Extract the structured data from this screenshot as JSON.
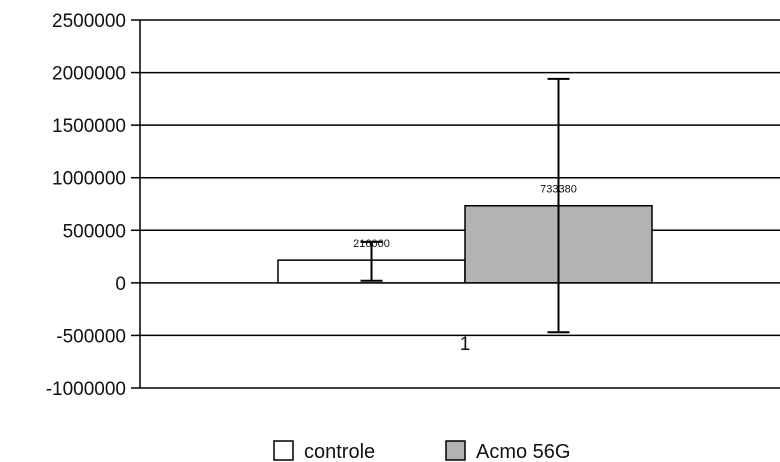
{
  "chart_data": {
    "type": "bar",
    "title": "",
    "xlabel": "",
    "ylabel": "",
    "categories": [
      "1"
    ],
    "ylim": [
      -1000000,
      2500000
    ],
    "ytick_step": 500000,
    "ytick_labels": [
      "2500000",
      "2000000",
      "1500000",
      "1000000",
      "500000",
      "0",
      "-500000",
      "-1000000"
    ],
    "grid": "horizontal",
    "legend_position": "bottom",
    "series": [
      {
        "name": "controle",
        "values": [
          216000
        ],
        "data_labels": [
          "216000"
        ],
        "error_low": [
          20000
        ],
        "error_high": [
          390000
        ],
        "color": "#ffffff"
      },
      {
        "name": "Acmo 56G",
        "values": [
          733380
        ],
        "data_labels": [
          "733380"
        ],
        "error_low": [
          -470000
        ],
        "error_high": [
          1940000
        ],
        "color": "#b3b3b3"
      }
    ]
  }
}
